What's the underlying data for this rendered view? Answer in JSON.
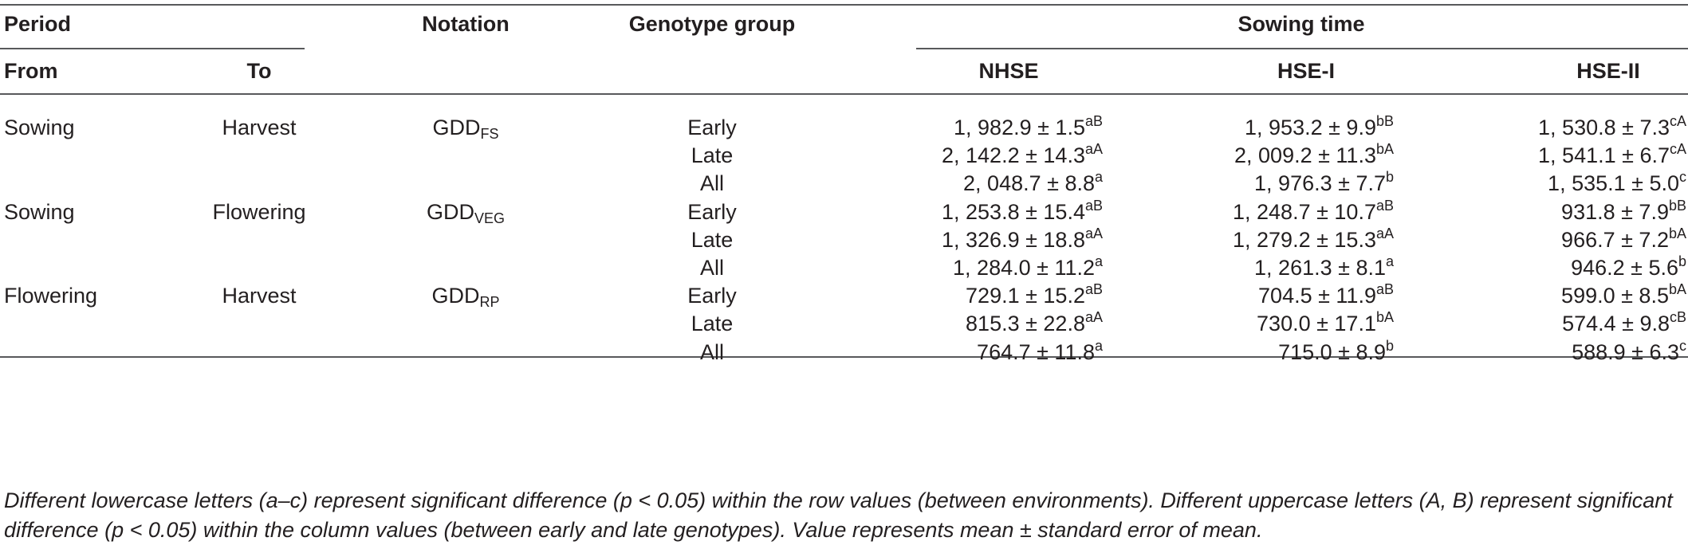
{
  "header": {
    "period": "Period",
    "notation": "Notation",
    "genotype_group": "Genotype group",
    "sowing_time": "Sowing time",
    "from": "From",
    "to": "To",
    "nhse": "NHSE",
    "hse1": "HSE-I",
    "hse2": "HSE-II"
  },
  "groups": [
    {
      "from": "Sowing",
      "to": "Harvest",
      "notation_base": "GDD",
      "notation_sub": "FS",
      "rows": [
        {
          "genotype": "Early",
          "nhse": "1, 982.9 ± 1.5",
          "nhse_sup": "aB",
          "hse1": "1, 953.2 ± 9.9",
          "hse1_sup": "bB",
          "hse2": "1, 530.8 ± 7.3",
          "hse2_sup": "cA"
        },
        {
          "genotype": "Late",
          "nhse": "2, 142.2 ± 14.3",
          "nhse_sup": "aA",
          "hse1": "2, 009.2 ± 11.3",
          "hse1_sup": "bA",
          "hse2": "1, 541.1 ± 6.7",
          "hse2_sup": "cA"
        },
        {
          "genotype": "All",
          "nhse": "2, 048.7 ± 8.8",
          "nhse_sup": "a",
          "hse1": "1, 976.3 ± 7.7",
          "hse1_sup": "b",
          "hse2": "1, 535.1 ± 5.0",
          "hse2_sup": "c"
        }
      ]
    },
    {
      "from": "Sowing",
      "to": "Flowering",
      "notation_base": "GDD",
      "notation_sub": "VEG",
      "rows": [
        {
          "genotype": "Early",
          "nhse": "1, 253.8 ± 15.4",
          "nhse_sup": "aB",
          "hse1": "1, 248.7 ± 10.7",
          "hse1_sup": "aB",
          "hse2": "931.8 ± 7.9",
          "hse2_sup": "bB"
        },
        {
          "genotype": "Late",
          "nhse": "1, 326.9 ± 18.8",
          "nhse_sup": "aA",
          "hse1": "1, 279.2 ± 15.3",
          "hse1_sup": "aA",
          "hse2": "966.7 ± 7.2",
          "hse2_sup": "bA"
        },
        {
          "genotype": "All",
          "nhse": "1, 284.0 ± 11.2",
          "nhse_sup": "a",
          "hse1": "1, 261.3 ± 8.1",
          "hse1_sup": "a",
          "hse2": "946.2 ± 5.6",
          "hse2_sup": "b"
        }
      ]
    },
    {
      "from": "Flowering",
      "to": "Harvest",
      "notation_base": "GDD",
      "notation_sub": "RP",
      "rows": [
        {
          "genotype": "Early",
          "nhse": "729.1 ± 15.2",
          "nhse_sup": "aB",
          "hse1": "704.5 ± 11.9",
          "hse1_sup": "aB",
          "hse2": "599.0 ± 8.5",
          "hse2_sup": "bA"
        },
        {
          "genotype": "Late",
          "nhse": "815.3 ± 22.8",
          "nhse_sup": "aA",
          "hse1": "730.0 ± 17.1",
          "hse1_sup": "bA",
          "hse2": "574.4 ± 9.8",
          "hse2_sup": "cB"
        },
        {
          "genotype": "All",
          "nhse": "764.7 ± 11.8",
          "nhse_sup": "a",
          "hse1": "715.0 ± 8.9",
          "hse1_sup": "b",
          "hse2": "588.9 ± 6.3",
          "hse2_sup": "c"
        }
      ]
    }
  ],
  "footnote": "Different lowercase letters (a–c) represent significant difference (p < 0.05) within the row values (between environments). Different uppercase letters (A, B) represent significant difference (p < 0.05) within the column values (between early and late genotypes). Value represents mean ± standard error of mean."
}
